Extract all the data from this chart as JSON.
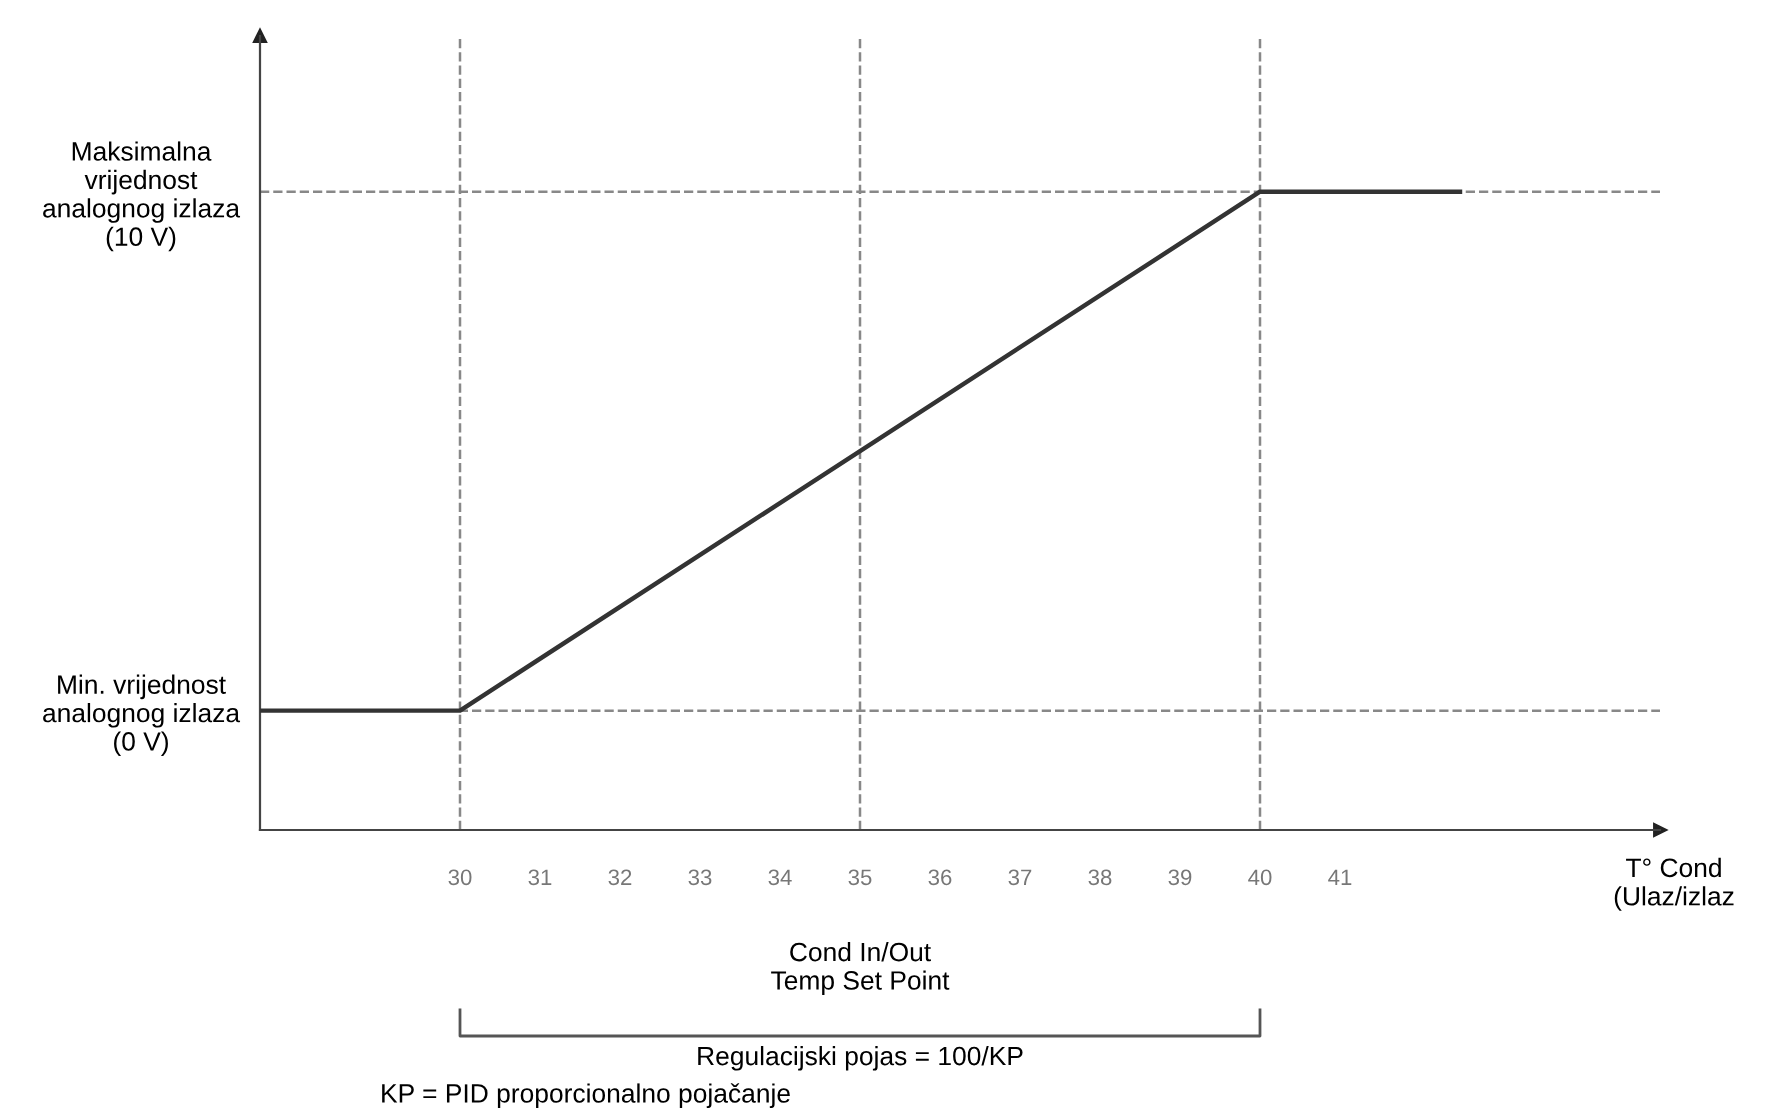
{
  "chart_data": {
    "type": "line",
    "xlabel": "T° Cond\n(Ulaz/izlaz",
    "x": [
      27.5,
      30,
      40,
      42.5
    ],
    "series": [
      {
        "color": "#333333",
        "values": [
          0,
          0,
          10,
          10
        ]
      }
    ],
    "xlim": [
      27.5,
      45
    ],
    "xticks": [
      30,
      31,
      32,
      33,
      34,
      35,
      36,
      37,
      38,
      39,
      40,
      41
    ],
    "ylim": [
      -2.3,
      13
    ],
    "yticks": [
      {
        "value": 0,
        "label": "Min. vrijednost\nanalognog izlaza\n(0 V)"
      },
      {
        "value": 10,
        "label": "Maksimalna\nvrijednost\nanalognog izlaza\n(10 V)"
      }
    ],
    "ref_lines": [
      {
        "axis": "y",
        "value": 0,
        "color": "#888888",
        "line_style": "dashed"
      },
      {
        "axis": "y",
        "value": 10,
        "color": "#888888",
        "line_style": "dashed"
      },
      {
        "axis": "x",
        "value": 30,
        "color": "#888888",
        "line_style": "dashed"
      },
      {
        "axis": "x",
        "value": 35,
        "color": "#888888",
        "line_style": "dashed"
      },
      {
        "axis": "x",
        "value": 40,
        "color": "#888888",
        "line_style": "dashed"
      }
    ],
    "annotations": [
      "Cond In/Out\nTemp Set Point",
      "Regulacijski pojas = 100/KP",
      "KP = PID proporcionalno pojačanje"
    ],
    "grid": false,
    "marker": "none",
    "line_style": "solid"
  }
}
